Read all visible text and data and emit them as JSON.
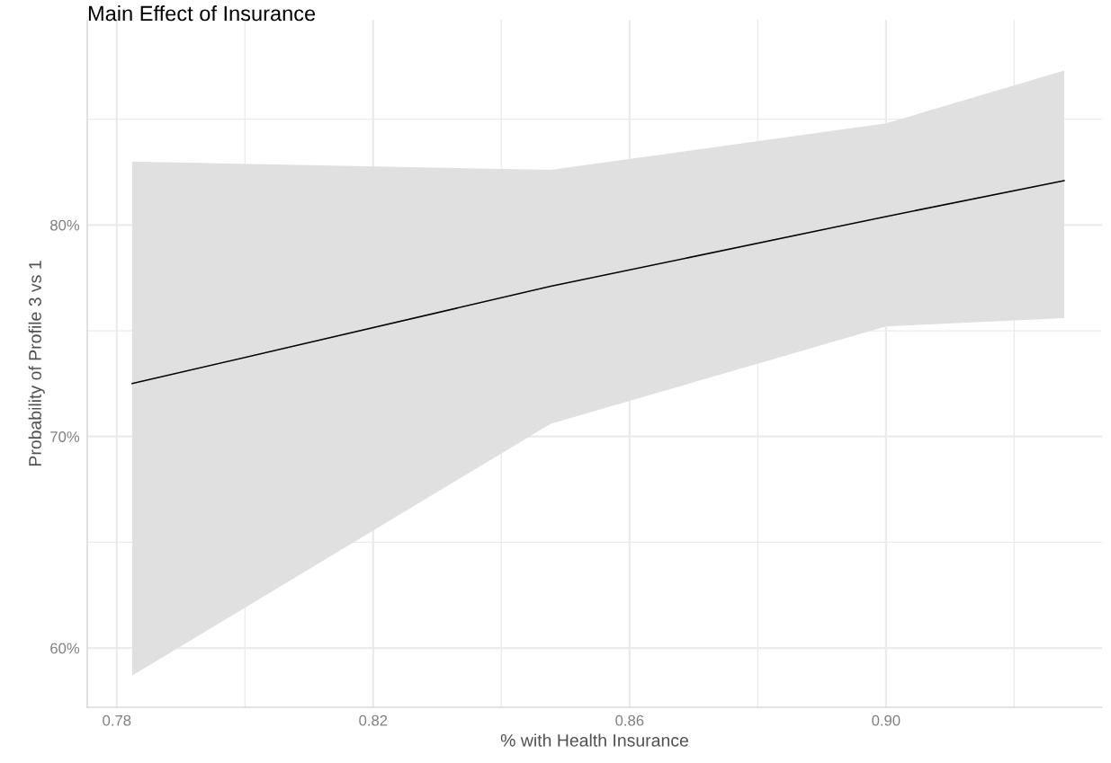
{
  "chart_data": {
    "type": "line",
    "title": "Main Effect of Insurance",
    "xlabel": "% with Health Insurance",
    "ylabel": "Probability of Profile 3 vs 1",
    "x": [
      0.7824,
      0.8477,
      0.9,
      0.9278
    ],
    "series": [
      {
        "color": "#000000",
        "values": [
          72.5,
          77.1,
          80.4,
          82.1
        ],
        "lower": [
          58.7,
          70.6,
          75.2,
          75.6
        ],
        "upper": [
          83.0,
          82.6,
          84.8,
          87.3
        ]
      }
    ],
    "xlim": [
      0.7754,
      0.9337
    ],
    "ylim": [
      57.2,
      89.7
    ],
    "xticks": [
      0.78,
      {
        "value": 0.8,
        "label": null
      },
      0.82,
      {
        "value": 0.84,
        "label": null
      },
      0.86,
      {
        "value": 0.88,
        "label": null
      },
      {
        "value": 0.9,
        "label": "0.90"
      },
      {
        "value": 0.92,
        "label": null
      }
    ],
    "yticks": [
      {
        "value": 60,
        "label": "60%"
      },
      {
        "value": 65,
        "label": null
      },
      {
        "value": 70,
        "label": "70%"
      },
      {
        "value": 75,
        "label": null
      },
      {
        "value": 80,
        "label": "80%"
      },
      {
        "value": 85,
        "label": null
      }
    ],
    "grid": true,
    "line_style": "solid",
    "marker": "none"
  }
}
